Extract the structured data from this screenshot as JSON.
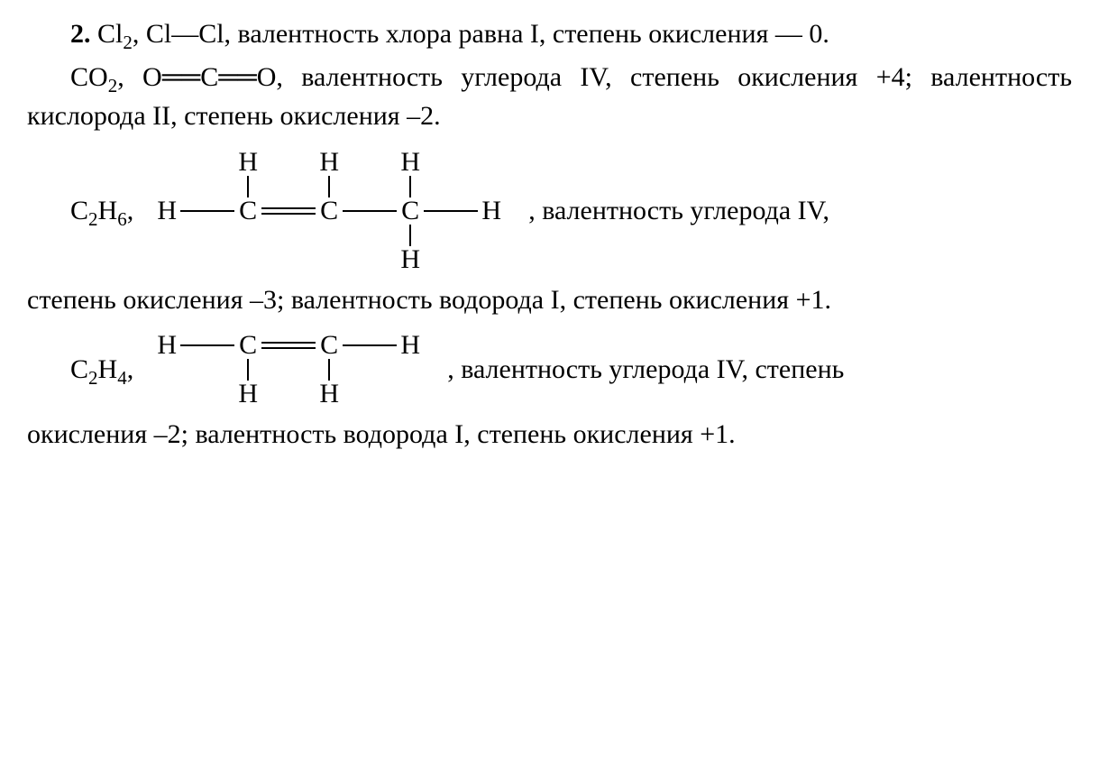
{
  "problem_number": "2.",
  "p1_a": "Cl",
  "p1_sub": "2",
  "p1_b": ", Cl—Cl, валентность хлора равна I, степень окисления — 0.",
  "p2_a": "CO",
  "p2_sub": "2",
  "p2_b": ", O══C══O, валентность углерода IV, степень окисления +4; валентность кислорода II, степень окисления –2.",
  "propene": {
    "lead_a": "C",
    "lead_sub1": "2",
    "lead_b": "H",
    "lead_sub2": "6",
    "lead_c": ",",
    "atoms": {
      "H": "H",
      "C": "C"
    },
    "trail": ", валентность углерода IV,"
  },
  "p3": "степень окисления –3; валентность водорода I, степень окисления +1.",
  "ethene": {
    "lead_a": "C",
    "lead_sub1": "2",
    "lead_b": "H",
    "lead_sub2": "4",
    "lead_c": ",",
    "atoms": {
      "H": "H",
      "C": "C"
    },
    "trail": ", валентность углерода IV, степень"
  },
  "p4": "окисления –2; валентность водорода I, степень окисления +1."
}
